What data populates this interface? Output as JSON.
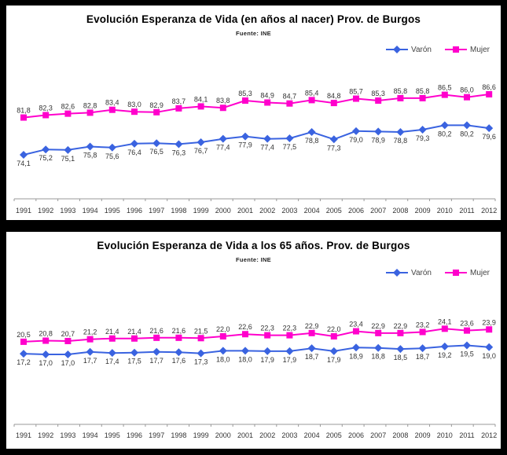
{
  "page": {
    "background_color": "#000000",
    "panel_color": "#ffffff"
  },
  "colors": {
    "varon": "#3A63E0",
    "mujer": "#FF00CC",
    "axis": "#999999",
    "text": "#333333"
  },
  "chart_data": [
    {
      "type": "line",
      "title": "Evolución Esperanza de Vida (en años al nacer) Prov. de Burgos",
      "subtitle": "Fuente: INE",
      "legend_position": "top-right",
      "grid": false,
      "decimal_separator": ",",
      "ylim": [
        74,
        87
      ],
      "categories": [
        "1991",
        "1992",
        "1993",
        "1994",
        "1995",
        "1996",
        "1997",
        "1998",
        "1999",
        "2000",
        "2001",
        "2002",
        "2003",
        "2004",
        "2005",
        "2006",
        "2007",
        "2008",
        "2009",
        "2010",
        "2011",
        "2012"
      ],
      "series": [
        {
          "name": "Varón",
          "marker": "diamond",
          "color": "#3A63E0",
          "label_position": "below",
          "values": [
            74.1,
            75.2,
            75.1,
            75.8,
            75.6,
            76.4,
            76.5,
            76.3,
            76.7,
            77.4,
            77.9,
            77.4,
            77.5,
            78.8,
            77.3,
            79.0,
            78.9,
            78.8,
            79.3,
            80.2,
            80.2,
            79.6
          ]
        },
        {
          "name": "Mujer",
          "marker": "square",
          "color": "#FF00CC",
          "label_position": "above",
          "values": [
            81.8,
            82.3,
            82.6,
            82.8,
            83.4,
            83.0,
            82.9,
            83.7,
            84.1,
            83.8,
            85.3,
            84.9,
            84.7,
            85.4,
            84.8,
            85.7,
            85.3,
            85.8,
            85.8,
            86.5,
            86.0,
            86.6
          ]
        }
      ]
    },
    {
      "type": "line",
      "title": "Evolución Esperanza de Vida a los 65 años. Prov. de Burgos",
      "subtitle": "Fuente: INE",
      "legend_position": "top-right",
      "grid": false,
      "decimal_separator": ",",
      "ylim": [
        17,
        24.5
      ],
      "categories": [
        "1991",
        "1992",
        "1993",
        "1994",
        "1995",
        "1996",
        "1997",
        "1998",
        "1999",
        "2000",
        "2001",
        "2002",
        "2003",
        "2004",
        "2005",
        "2006",
        "2007",
        "2008",
        "2009",
        "2010",
        "2011",
        "2012"
      ],
      "series": [
        {
          "name": "Varón",
          "marker": "diamond",
          "color": "#3A63E0",
          "label_position": "below",
          "values": [
            17.2,
            17.0,
            17.0,
            17.7,
            17.4,
            17.5,
            17.7,
            17.6,
            17.3,
            18.0,
            18.0,
            17.9,
            17.9,
            18.7,
            17.9,
            18.9,
            18.8,
            18.5,
            18.7,
            19.2,
            19.5,
            19.0
          ]
        },
        {
          "name": "Mujer",
          "marker": "square",
          "color": "#FF00CC",
          "label_position": "above",
          "values": [
            20.5,
            20.8,
            20.7,
            21.2,
            21.4,
            21.4,
            21.6,
            21.6,
            21.5,
            22.0,
            22.6,
            22.3,
            22.3,
            22.9,
            22.0,
            23.4,
            22.9,
            22.9,
            23.2,
            24.1,
            23.6,
            23.9
          ]
        }
      ]
    }
  ]
}
